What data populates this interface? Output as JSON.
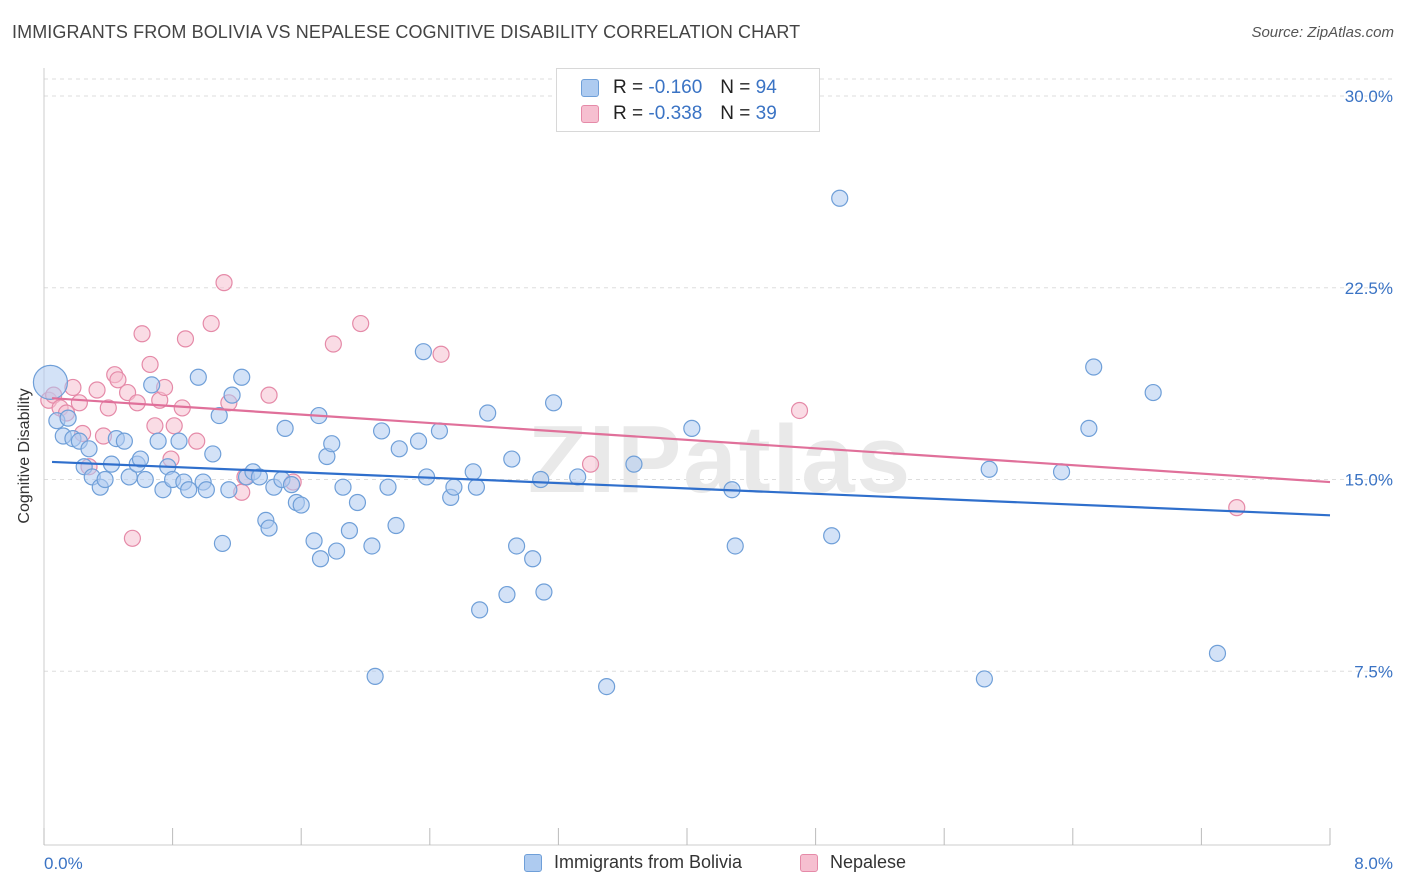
{
  "header": {
    "title": "IMMIGRANTS FROM BOLIVIA VS NEPALESE COGNITIVE DISABILITY CORRELATION CHART",
    "source": "Source: ZipAtlas.com"
  },
  "watermark": "ZIPatlas",
  "legend_top": {
    "rows": [
      {
        "r_label": "R =",
        "r_value": "-0.160",
        "n_label": "N =",
        "n_value": "94"
      },
      {
        "r_label": "R =",
        "r_value": "-0.338",
        "n_label": "N =",
        "n_value": "39"
      }
    ]
  },
  "legend_bottom": {
    "items": [
      "Immigrants from Bolivia",
      "Nepalese"
    ]
  },
  "colors": {
    "blue_fill": "#aecbf0",
    "blue_stroke": "#6f9fd8",
    "blue_line": "#2f6fcc",
    "pink_fill": "#f6bfd0",
    "pink_stroke": "#e58aa8",
    "pink_line": "#e0709a",
    "tick_text": "#3a73c4",
    "grid": "#dddddd"
  },
  "chart_data": {
    "type": "scatter",
    "title": "IMMIGRANTS FROM BOLIVIA VS NEPALESE COGNITIVE DISABILITY CORRELATION CHART",
    "xlabel": "",
    "ylabel": "Cognitive Disability",
    "xlim": [
      0.0,
      8.0
    ],
    "ylim": [
      0.0,
      30.0
    ],
    "x_tick_labels": [
      "0.0%",
      "8.0%"
    ],
    "y_ticks": [
      7.5,
      15.0,
      22.5,
      30.0
    ],
    "y_tick_labels": [
      "7.5%",
      "15.0%",
      "22.5%",
      "30.0%"
    ],
    "grid": "horizontal dashed",
    "series": [
      {
        "name": "Immigrants from Bolivia",
        "R": -0.16,
        "N": 94,
        "trend": {
          "x": [
            0.0,
            8.0
          ],
          "y": [
            15.7,
            13.6
          ]
        },
        "points": [
          {
            "x": 0.04,
            "y": 18.8,
            "big": true
          },
          {
            "x": 0.08,
            "y": 17.3
          },
          {
            "x": 0.12,
            "y": 16.7
          },
          {
            "x": 0.15,
            "y": 17.4
          },
          {
            "x": 0.18,
            "y": 16.6
          },
          {
            "x": 0.22,
            "y": 16.5
          },
          {
            "x": 0.25,
            "y": 15.5
          },
          {
            "x": 0.28,
            "y": 16.2
          },
          {
            "x": 0.3,
            "y": 15.1
          },
          {
            "x": 0.35,
            "y": 14.7
          },
          {
            "x": 0.38,
            "y": 15.0
          },
          {
            "x": 0.42,
            "y": 15.6
          },
          {
            "x": 0.45,
            "y": 16.6
          },
          {
            "x": 0.5,
            "y": 16.5
          },
          {
            "x": 0.53,
            "y": 15.1
          },
          {
            "x": 0.58,
            "y": 15.6
          },
          {
            "x": 0.6,
            "y": 15.8
          },
          {
            "x": 0.63,
            "y": 15.0
          },
          {
            "x": 0.67,
            "y": 18.7
          },
          {
            "x": 0.71,
            "y": 16.5
          },
          {
            "x": 0.74,
            "y": 14.6
          },
          {
            "x": 0.77,
            "y": 15.5
          },
          {
            "x": 0.8,
            "y": 15.0
          },
          {
            "x": 0.84,
            "y": 16.5
          },
          {
            "x": 0.87,
            "y": 14.9
          },
          {
            "x": 0.9,
            "y": 14.6
          },
          {
            "x": 0.96,
            "y": 19.0
          },
          {
            "x": 0.99,
            "y": 14.9
          },
          {
            "x": 1.01,
            "y": 14.6
          },
          {
            "x": 1.05,
            "y": 16.0
          },
          {
            "x": 1.09,
            "y": 17.5
          },
          {
            "x": 1.11,
            "y": 12.5
          },
          {
            "x": 1.15,
            "y": 14.6
          },
          {
            "x": 1.17,
            "y": 18.3
          },
          {
            "x": 1.23,
            "y": 19.0
          },
          {
            "x": 1.26,
            "y": 15.1
          },
          {
            "x": 1.3,
            "y": 15.3
          },
          {
            "x": 1.34,
            "y": 15.1
          },
          {
            "x": 1.38,
            "y": 13.4
          },
          {
            "x": 1.4,
            "y": 13.1
          },
          {
            "x": 1.43,
            "y": 14.7
          },
          {
            "x": 1.48,
            "y": 15.0
          },
          {
            "x": 1.5,
            "y": 17.0
          },
          {
            "x": 1.54,
            "y": 14.8
          },
          {
            "x": 1.57,
            "y": 14.1
          },
          {
            "x": 1.6,
            "y": 14.0
          },
          {
            "x": 1.68,
            "y": 12.6
          },
          {
            "x": 1.71,
            "y": 17.5
          },
          {
            "x": 1.72,
            "y": 11.9
          },
          {
            "x": 1.76,
            "y": 15.9
          },
          {
            "x": 1.79,
            "y": 16.4
          },
          {
            "x": 1.82,
            "y": 12.2
          },
          {
            "x": 1.86,
            "y": 14.7
          },
          {
            "x": 1.9,
            "y": 13.0
          },
          {
            "x": 1.95,
            "y": 14.1
          },
          {
            "x": 2.04,
            "y": 12.4
          },
          {
            "x": 2.06,
            "y": 7.3
          },
          {
            "x": 2.1,
            "y": 16.9
          },
          {
            "x": 2.14,
            "y": 14.7
          },
          {
            "x": 2.19,
            "y": 13.2
          },
          {
            "x": 2.21,
            "y": 16.2
          },
          {
            "x": 2.33,
            "y": 16.5
          },
          {
            "x": 2.36,
            "y": 20.0
          },
          {
            "x": 2.38,
            "y": 15.1
          },
          {
            "x": 2.46,
            "y": 16.9
          },
          {
            "x": 2.53,
            "y": 14.3
          },
          {
            "x": 2.55,
            "y": 14.7
          },
          {
            "x": 2.67,
            "y": 15.3
          },
          {
            "x": 2.69,
            "y": 14.7
          },
          {
            "x": 2.71,
            "y": 9.9
          },
          {
            "x": 2.76,
            "y": 17.6
          },
          {
            "x": 2.88,
            "y": 10.5
          },
          {
            "x": 2.91,
            "y": 15.8
          },
          {
            "x": 2.94,
            "y": 12.4
          },
          {
            "x": 3.04,
            "y": 11.9
          },
          {
            "x": 3.09,
            "y": 15.0
          },
          {
            "x": 3.11,
            "y": 10.6
          },
          {
            "x": 3.17,
            "y": 18.0
          },
          {
            "x": 3.32,
            "y": 15.1
          },
          {
            "x": 3.5,
            "y": 6.9
          },
          {
            "x": 3.67,
            "y": 15.6
          },
          {
            "x": 4.03,
            "y": 17.0
          },
          {
            "x": 4.28,
            "y": 14.6
          },
          {
            "x": 4.3,
            "y": 12.4
          },
          {
            "x": 4.9,
            "y": 12.8
          },
          {
            "x": 4.95,
            "y": 26.0
          },
          {
            "x": 5.85,
            "y": 7.2
          },
          {
            "x": 5.88,
            "y": 15.4
          },
          {
            "x": 6.33,
            "y": 15.3
          },
          {
            "x": 6.5,
            "y": 17.0
          },
          {
            "x": 6.53,
            "y": 19.4
          },
          {
            "x": 6.9,
            "y": 18.4
          },
          {
            "x": 7.3,
            "y": 8.2
          }
        ]
      },
      {
        "name": "Nepalese",
        "R": -0.338,
        "N": 39,
        "trend": {
          "x": [
            0.0,
            8.0
          ],
          "y": [
            18.2,
            14.9
          ]
        },
        "points": [
          {
            "x": 0.03,
            "y": 18.1
          },
          {
            "x": 0.06,
            "y": 18.3
          },
          {
            "x": 0.1,
            "y": 17.8
          },
          {
            "x": 0.14,
            "y": 17.6
          },
          {
            "x": 0.18,
            "y": 18.6
          },
          {
            "x": 0.22,
            "y": 18.0
          },
          {
            "x": 0.24,
            "y": 16.8
          },
          {
            "x": 0.28,
            "y": 15.5
          },
          {
            "x": 0.33,
            "y": 18.5
          },
          {
            "x": 0.37,
            "y": 16.7
          },
          {
            "x": 0.4,
            "y": 17.8
          },
          {
            "x": 0.44,
            "y": 19.1
          },
          {
            "x": 0.46,
            "y": 18.9
          },
          {
            "x": 0.52,
            "y": 18.4
          },
          {
            "x": 0.55,
            "y": 12.7
          },
          {
            "x": 0.58,
            "y": 18.0
          },
          {
            "x": 0.61,
            "y": 20.7
          },
          {
            "x": 0.66,
            "y": 19.5
          },
          {
            "x": 0.69,
            "y": 17.1
          },
          {
            "x": 0.72,
            "y": 18.1
          },
          {
            "x": 0.75,
            "y": 18.6
          },
          {
            "x": 0.79,
            "y": 15.8
          },
          {
            "x": 0.81,
            "y": 17.1
          },
          {
            "x": 0.86,
            "y": 17.8
          },
          {
            "x": 0.88,
            "y": 20.5
          },
          {
            "x": 0.95,
            "y": 16.5
          },
          {
            "x": 1.04,
            "y": 21.1
          },
          {
            "x": 1.12,
            "y": 22.7
          },
          {
            "x": 1.15,
            "y": 18.0
          },
          {
            "x": 1.23,
            "y": 14.5
          },
          {
            "x": 1.25,
            "y": 15.1
          },
          {
            "x": 1.4,
            "y": 18.3
          },
          {
            "x": 1.55,
            "y": 14.9
          },
          {
            "x": 1.8,
            "y": 20.3
          },
          {
            "x": 1.97,
            "y": 21.1
          },
          {
            "x": 2.47,
            "y": 19.9
          },
          {
            "x": 3.4,
            "y": 15.6
          },
          {
            "x": 4.7,
            "y": 17.7
          },
          {
            "x": 7.42,
            "y": 13.9
          }
        ]
      }
    ]
  }
}
